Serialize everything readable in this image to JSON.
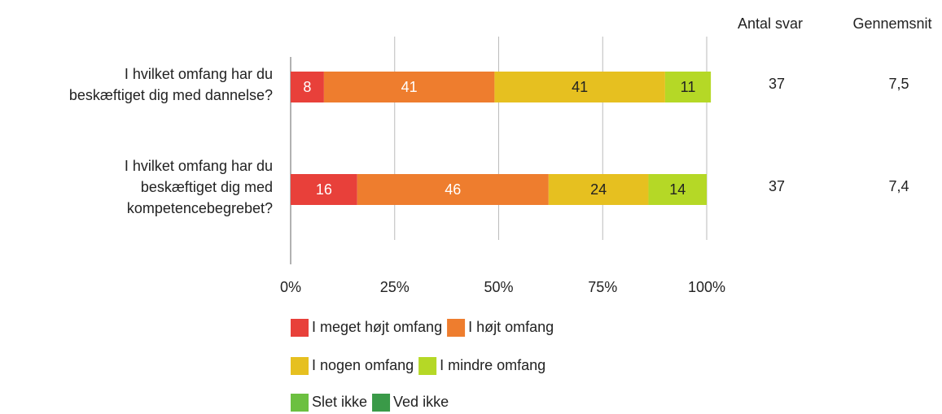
{
  "chart_data": {
    "type": "stacked_bar_horizontal",
    "categories": [
      [
        "I hvilket omfang har du",
        "beskæftiget dig med dannelse?"
      ],
      [
        "I hvilket omfang har du",
        "beskæftiget dig med",
        "kompetencebegrebet?"
      ]
    ],
    "series": [
      {
        "name": "I meget højt omfang",
        "color": "#e8403a",
        "label_color": "#ffffff",
        "values": [
          8,
          16
        ]
      },
      {
        "name": "I højt omfang",
        "color": "#ee7d2e",
        "label_color": "#ffffff",
        "values": [
          41,
          46
        ]
      },
      {
        "name": "I nogen omfang",
        "color": "#e6c020",
        "label_color": "#222222",
        "values": [
          41,
          24
        ]
      },
      {
        "name": "I mindre omfang",
        "color": "#b5d826",
        "label_color": "#222222",
        "values": [
          11,
          14
        ]
      },
      {
        "name": "Slet ikke",
        "color": "#6cc040",
        "label_color": "#222222",
        "values": [
          0,
          0
        ]
      },
      {
        "name": "Ved ikke",
        "color": "#3a9a48",
        "label_color": "#ffffff",
        "values": [
          0,
          0
        ]
      }
    ],
    "xlim": [
      0,
      100
    ],
    "xticks": [
      {
        "value": 0,
        "label": "0%"
      },
      {
        "value": 25,
        "label": "25%"
      },
      {
        "value": 50,
        "label": "50%"
      },
      {
        "value": 75,
        "label": "75%"
      },
      {
        "value": 100,
        "label": "100%"
      }
    ],
    "grid": true,
    "columns": [
      {
        "header": "Antal svar",
        "values": [
          37,
          37
        ]
      },
      {
        "header": "Gennemsnit",
        "values": [
          7.5,
          7.4
        ],
        "value_labels": [
          "7,5",
          "7,4"
        ]
      }
    ]
  }
}
